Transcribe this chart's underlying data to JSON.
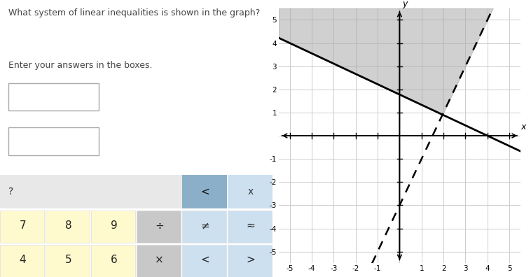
{
  "question_text": "What system of linear inequalities is shown in the graph?",
  "subtext": "Enter your answers in the boxes.",
  "xlim": [
    -5.5,
    5.5
  ],
  "ylim": [
    -5.5,
    5.5
  ],
  "xticks": [
    -5,
    -4,
    -3,
    -2,
    -1,
    0,
    1,
    2,
    3,
    4,
    5
  ],
  "yticks": [
    -5,
    -4,
    -3,
    -2,
    -1,
    0,
    1,
    2,
    3,
    4,
    5
  ],
  "grid_color": "#cccccc",
  "shaded_color": "#aaaaaa",
  "shaded_alpha": 0.55,
  "solid_slope": -0.4444,
  "solid_intercept": 1.7778,
  "dashed_slope": 2.0,
  "dashed_intercept": -3.0,
  "bg_color": "#ffffff",
  "keyboard_rows": [
    {
      "cells": [
        {
          "text": "?",
          "bg": "#e8e8e8",
          "wide": true
        },
        {
          "text": "<",
          "bg": "#8bafc8",
          "selected": true
        },
        {
          "text": "x",
          "bg": "#cce0f0"
        }
      ]
    },
    {
      "cells": [
        {
          "text": "7",
          "bg": "#fffacd"
        },
        {
          "text": "8",
          "bg": "#fffacd"
        },
        {
          "text": "9",
          "bg": "#fffacd"
        },
        {
          "text": "÷",
          "bg": "#c8c8c8"
        },
        {
          "text": "≠",
          "bg": "#cce0f0"
        },
        {
          "text": "≈",
          "bg": "#cce0f0"
        }
      ]
    },
    {
      "cells": [
        {
          "text": "4",
          "bg": "#fffacd"
        },
        {
          "text": "5",
          "bg": "#fffacd"
        },
        {
          "text": "6",
          "bg": "#fffacd"
        },
        {
          "text": "×",
          "bg": "#c8c8c8"
        },
        {
          "text": "<",
          "bg": "#cce0f0"
        },
        {
          "text": ">",
          "bg": "#cce0f0"
        }
      ]
    }
  ]
}
